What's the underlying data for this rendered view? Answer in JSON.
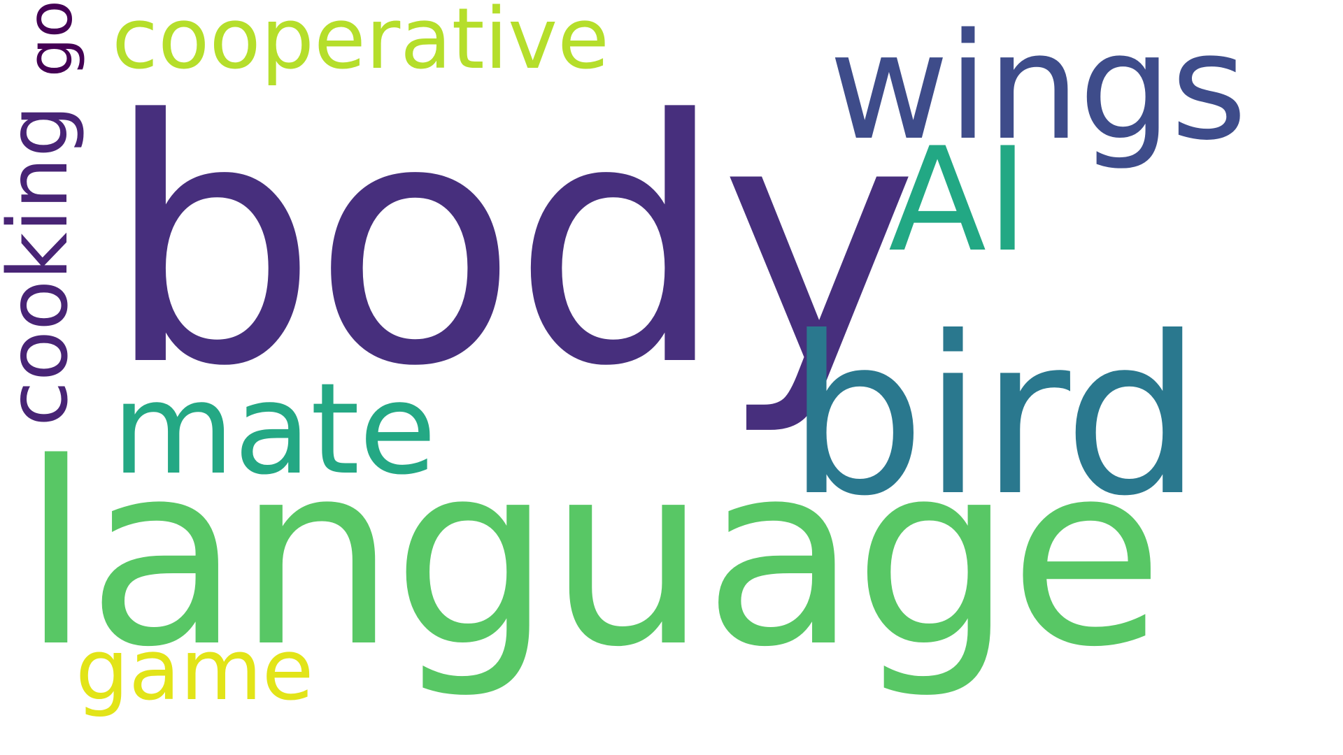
{
  "word_cloud": {
    "background_color": "#ffffff",
    "words": [
      {
        "text": "body",
        "color": "#472f7d",
        "orientation": "horizontal"
      },
      {
        "text": "language",
        "color": "#58c765",
        "orientation": "horizontal"
      },
      {
        "text": "bird",
        "color": "#2a788e",
        "orientation": "horizontal"
      },
      {
        "text": "wings",
        "color": "#3e4c8a",
        "orientation": "horizontal"
      },
      {
        "text": "AI",
        "color": "#22a884",
        "orientation": "horizontal"
      },
      {
        "text": "mate",
        "color": "#24a884",
        "orientation": "horizontal"
      },
      {
        "text": "cooperative",
        "color": "#b5de2b",
        "orientation": "horizontal"
      },
      {
        "text": "game",
        "color": "#e2e418",
        "orientation": "horizontal"
      },
      {
        "text": "cooking",
        "color": "#482475",
        "orientation": "vertical"
      },
      {
        "text": "go",
        "color": "#440154",
        "orientation": "vertical"
      }
    ]
  }
}
